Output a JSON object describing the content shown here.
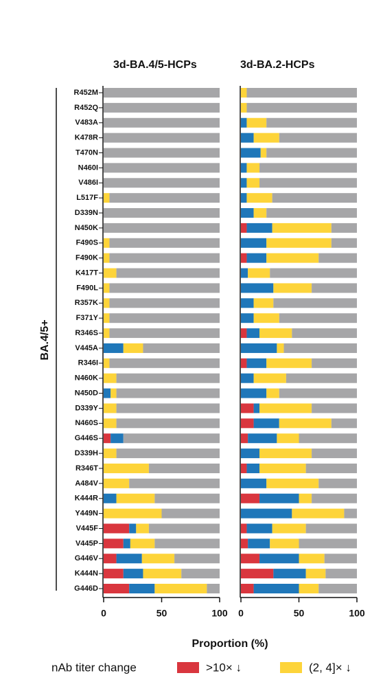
{
  "chart_data": [
    {
      "type": "bar",
      "orientation": "horizontal",
      "stacked": true,
      "title": "3d-BA.4/5-HCPs",
      "ylabel": "BA.4/5+",
      "xlabel": "Proportion (%)",
      "legend_title": "nAb titer change",
      "categories": [
        "R452M",
        "R452Q",
        "V483A",
        "K478R",
        "T470N",
        "N460I",
        "V486I",
        "L517F",
        "D339N",
        "N450K",
        "F490S",
        "F490K",
        "K417T",
        "F490L",
        "R357K",
        "F371Y",
        "R346S",
        "V445A",
        "R346I",
        "N460K",
        "N450D",
        "D339Y",
        "N460S",
        "G446S",
        "D339H",
        "R346T",
        "A484V",
        "K444R",
        "Y449N",
        "V445F",
        "V445P",
        "G446V",
        "K444N",
        "G446D"
      ],
      "xlim": [
        0,
        100
      ],
      "xticks": [
        0,
        50,
        100
      ],
      "series": [
        {
          "name": ">10× ↓",
          "color": "#d9363e",
          "values": [
            0,
            0,
            0,
            0,
            0,
            0,
            0,
            0,
            0,
            0,
            0,
            0,
            0,
            0,
            0,
            0,
            0,
            0,
            0,
            0,
            0,
            0,
            0,
            6,
            0,
            0,
            0,
            0,
            0,
            22,
            17,
            11,
            17,
            22
          ]
        },
        {
          "color": "#1f77b9",
          "values": [
            0,
            0,
            0,
            0,
            0,
            0,
            0,
            0,
            0,
            0,
            0,
            0,
            0,
            0,
            0,
            0,
            0,
            17,
            0,
            0,
            6,
            0,
            0,
            11,
            0,
            0,
            0,
            11,
            0,
            6,
            6,
            22,
            17,
            22
          ]
        },
        {
          "name": "(2, 4]× ↓",
          "color": "#fdd43a",
          "values": [
            0,
            0,
            0,
            0,
            0,
            0,
            0,
            5,
            0,
            0,
            5,
            5,
            11,
            5,
            5,
            5,
            5,
            17,
            5,
            11,
            5,
            11,
            11,
            0,
            11,
            39,
            22,
            33,
            50,
            11,
            21,
            28,
            33,
            45
          ]
        },
        {
          "color": "#a6a6a8",
          "values": [
            100,
            100,
            100,
            100,
            100,
            100,
            100,
            95,
            100,
            100,
            95,
            95,
            89,
            95,
            95,
            95,
            95,
            66,
            95,
            89,
            89,
            89,
            89,
            83,
            89,
            61,
            78,
            56,
            50,
            61,
            56,
            39,
            33,
            11
          ]
        }
      ]
    },
    {
      "type": "bar",
      "orientation": "horizontal",
      "stacked": true,
      "title": "3d-BA.2-HCPs",
      "xlim": [
        0,
        100
      ],
      "xticks": [
        0,
        50,
        100
      ],
      "series": [
        {
          "color": "#d9363e",
          "values": [
            0,
            0,
            0,
            0,
            0,
            0,
            0,
            0,
            0,
            5,
            0,
            5,
            0,
            0,
            0,
            0,
            5,
            0,
            5,
            0,
            0,
            11,
            11,
            6,
            0,
            5,
            0,
            16,
            0,
            5,
            6,
            16,
            28,
            11
          ]
        },
        {
          "color": "#1f77b9",
          "values": [
            0,
            0,
            5,
            11,
            17,
            5,
            5,
            5,
            11,
            22,
            22,
            17,
            6,
            28,
            11,
            11,
            11,
            31,
            17,
            11,
            22,
            5,
            22,
            25,
            16,
            11,
            22,
            34,
            44,
            22,
            19,
            34,
            28,
            39
          ]
        },
        {
          "color": "#fdd43a",
          "values": [
            5,
            5,
            17,
            22,
            5,
            11,
            11,
            22,
            11,
            51,
            56,
            45,
            19,
            33,
            17,
            22,
            28,
            6,
            39,
            28,
            11,
            45,
            45,
            19,
            45,
            40,
            45,
            11,
            45,
            29,
            25,
            22,
            17,
            17
          ]
        },
        {
          "color": "#a6a6a8",
          "values": [
            95,
            95,
            78,
            67,
            78,
            84,
            84,
            73,
            78,
            22,
            22,
            33,
            75,
            39,
            72,
            67,
            56,
            63,
            39,
            61,
            67,
            39,
            22,
            50,
            39,
            44,
            33,
            39,
            11,
            44,
            50,
            28,
            27,
            33
          ]
        }
      ]
    }
  ]
}
